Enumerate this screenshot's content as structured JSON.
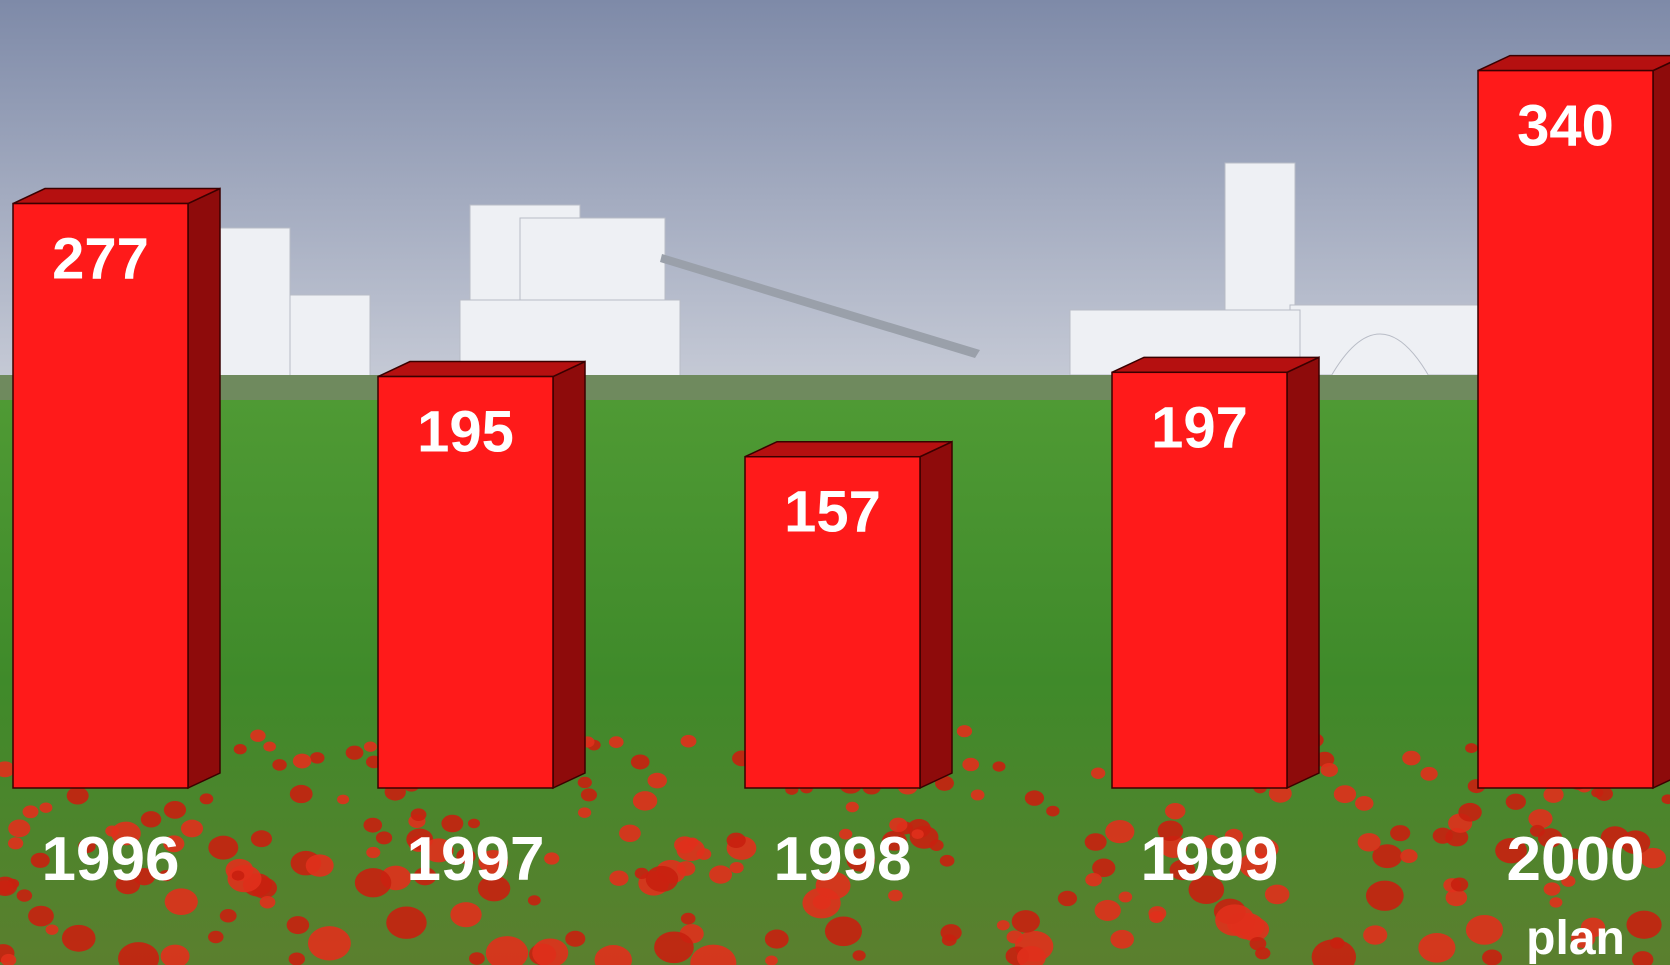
{
  "chart_data": {
    "type": "bar",
    "categories": [
      "1996",
      "1997",
      "1998",
      "1999",
      "2000"
    ],
    "values": [
      277,
      195,
      157,
      197,
      340
    ],
    "annotations": [
      "plan"
    ],
    "color": "#ff1a1a",
    "side_color": "#8e0b0b"
  }
}
